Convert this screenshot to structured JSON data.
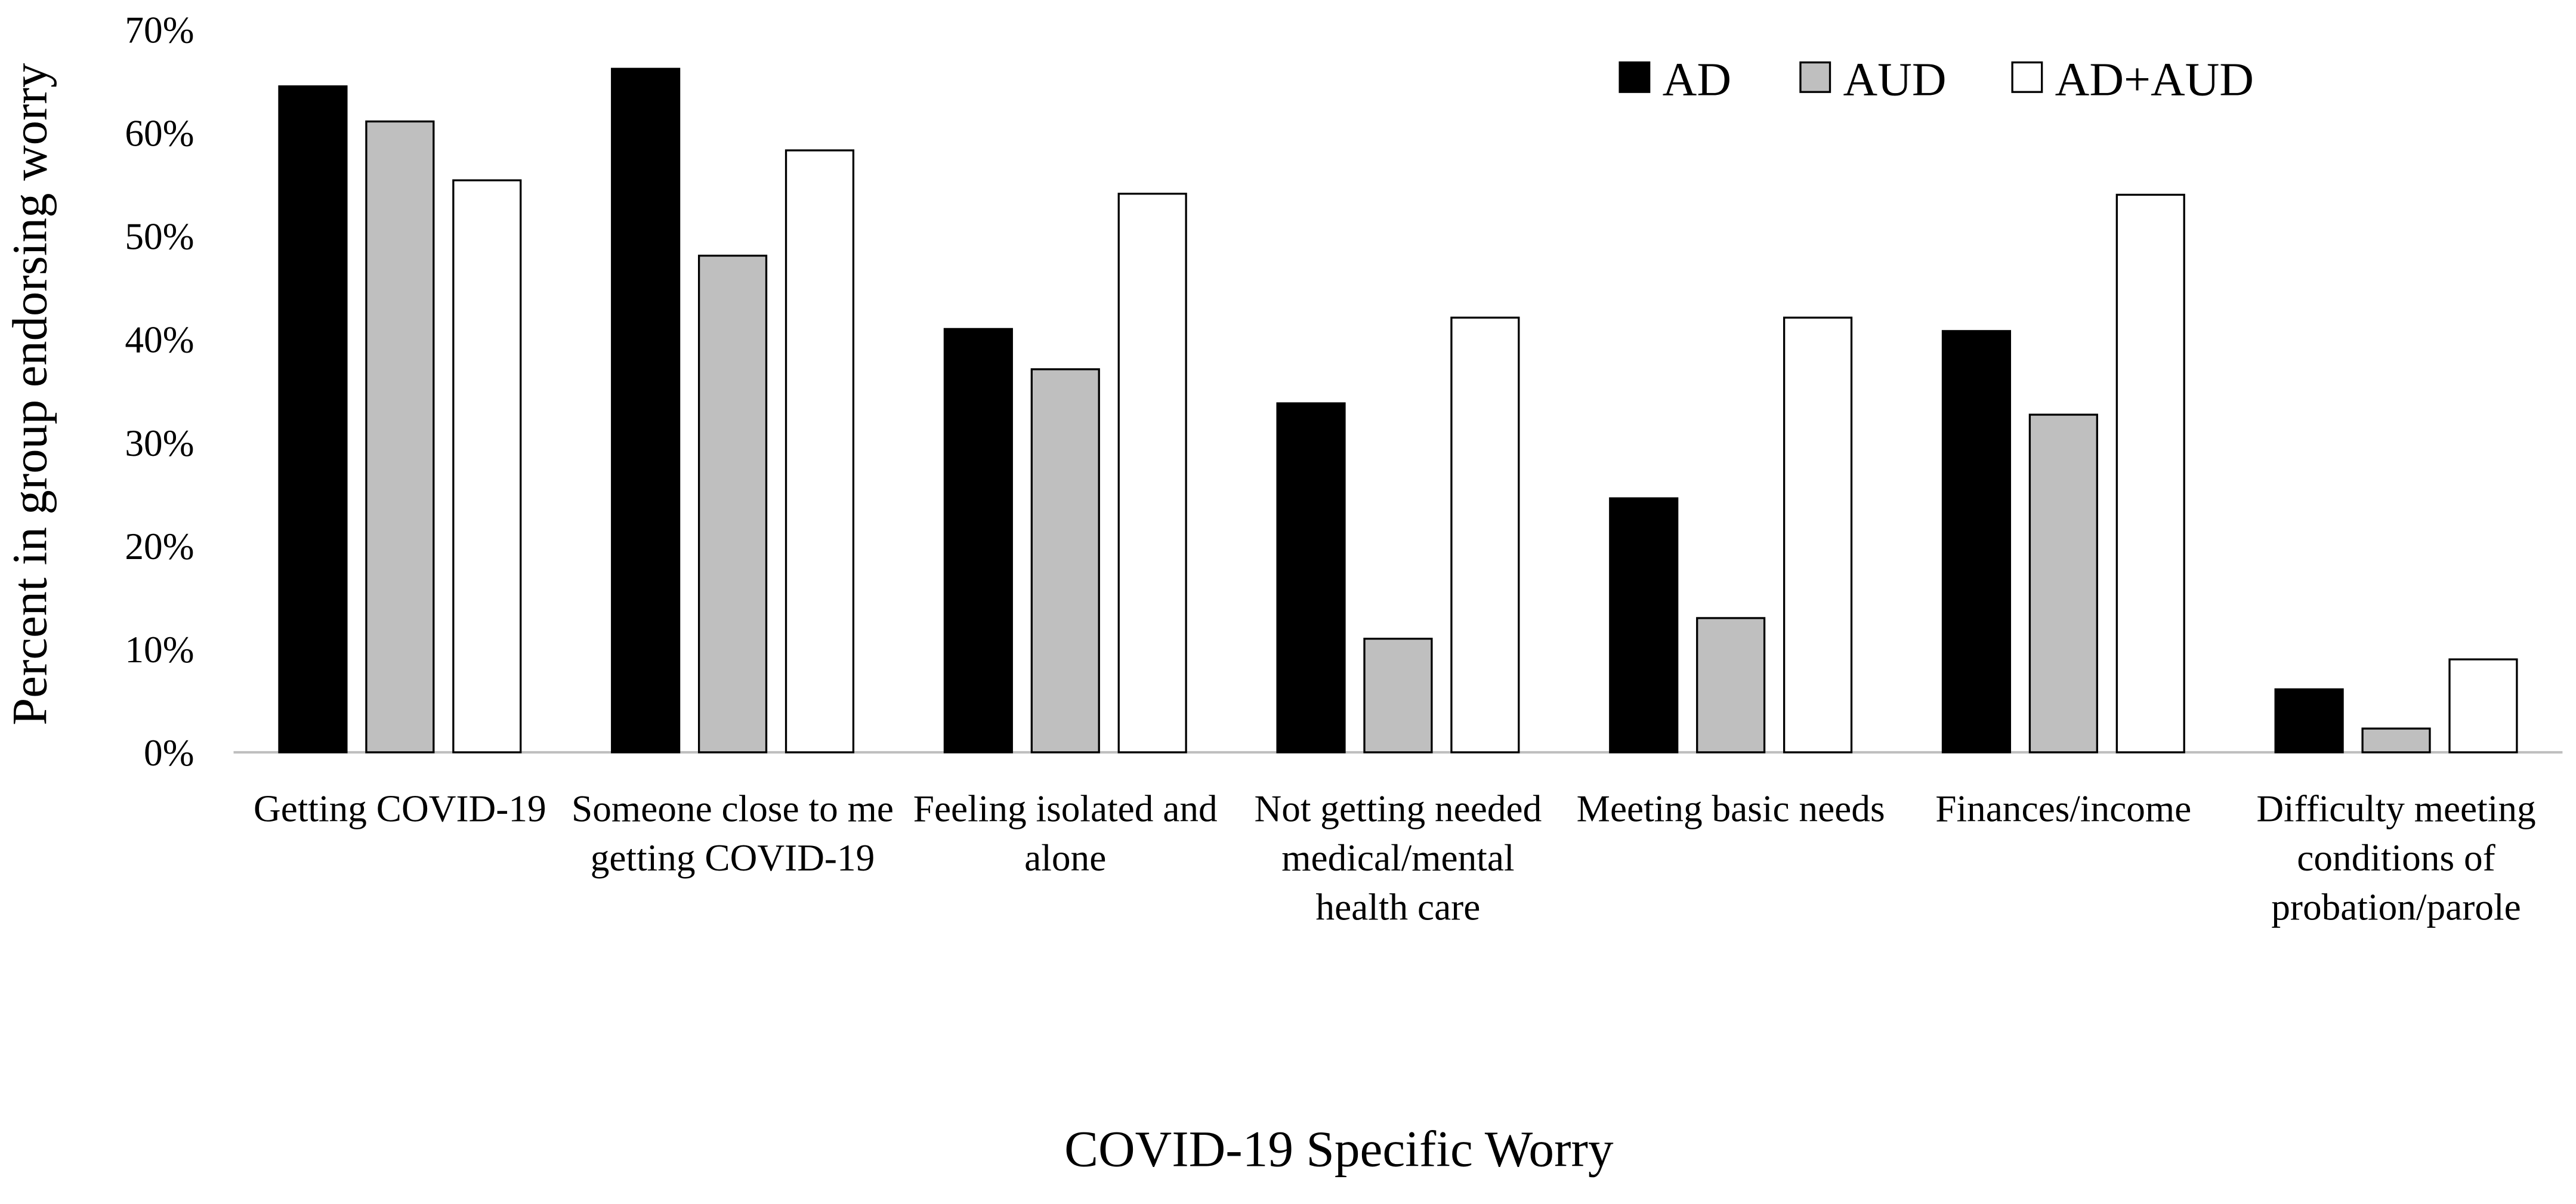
{
  "chart_data": {
    "type": "bar",
    "x_label": "COVID-19 Specific Worry",
    "y_label": "Percent in group endorsing worry",
    "categories": [
      "Getting COVID-19",
      "Someone close to me getting COVID-19",
      "Feeling isolated and alone",
      "Not getting needed medical/mental health care",
      "Meeting basic needs",
      "Finances/income",
      "Difficulty meeting conditions of probation/parole"
    ],
    "series": [
      {
        "name": "AD",
        "color": "#000000",
        "values": [
          64.5,
          66.2,
          41,
          33.8,
          24.6,
          40.8,
          6.1
        ]
      },
      {
        "name": "AUD",
        "color": "#bfbfbf",
        "values": [
          61.1,
          48.1,
          37.1,
          11,
          13,
          32.7,
          2.3
        ]
      },
      {
        "name": "AD+AUD",
        "color": "#ffffff",
        "values": [
          55.4,
          58.3,
          54.1,
          42.1,
          42.1,
          54,
          9
        ]
      }
    ],
    "ylim": [
      0,
      70
    ],
    "yticks": [
      {
        "value": 0,
        "label": "0%"
      },
      {
        "value": 10,
        "label": "10%"
      },
      {
        "value": 20,
        "label": "20%"
      },
      {
        "value": 30,
        "label": "30%"
      },
      {
        "value": 40,
        "label": "40%"
      },
      {
        "value": 50,
        "label": "50%"
      },
      {
        "value": 60,
        "label": "60%"
      },
      {
        "value": 70,
        "label": "70%"
      }
    ],
    "legend": "top-right"
  }
}
